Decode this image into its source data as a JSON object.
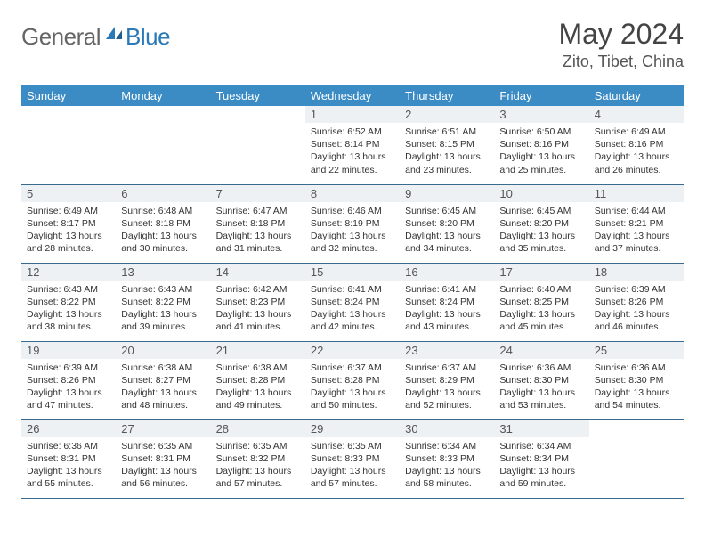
{
  "brand": {
    "part1": "General",
    "part2": "Blue"
  },
  "title": "May 2024",
  "location": "Zito, Tibet, China",
  "colors": {
    "header_bg": "#3b8bc4",
    "header_text": "#ffffff",
    "daynum_bg": "#eef1f3",
    "border": "#3b6a8f",
    "brand_gray": "#666666",
    "brand_blue": "#2a7ab8"
  },
  "weekdays": [
    "Sunday",
    "Monday",
    "Tuesday",
    "Wednesday",
    "Thursday",
    "Friday",
    "Saturday"
  ],
  "weeks": [
    [
      null,
      null,
      null,
      {
        "n": "1",
        "sr": "6:52 AM",
        "ss": "8:14 PM",
        "dl": "13 hours and 22 minutes."
      },
      {
        "n": "2",
        "sr": "6:51 AM",
        "ss": "8:15 PM",
        "dl": "13 hours and 23 minutes."
      },
      {
        "n": "3",
        "sr": "6:50 AM",
        "ss": "8:16 PM",
        "dl": "13 hours and 25 minutes."
      },
      {
        "n": "4",
        "sr": "6:49 AM",
        "ss": "8:16 PM",
        "dl": "13 hours and 26 minutes."
      }
    ],
    [
      {
        "n": "5",
        "sr": "6:49 AM",
        "ss": "8:17 PM",
        "dl": "13 hours and 28 minutes."
      },
      {
        "n": "6",
        "sr": "6:48 AM",
        "ss": "8:18 PM",
        "dl": "13 hours and 30 minutes."
      },
      {
        "n": "7",
        "sr": "6:47 AM",
        "ss": "8:18 PM",
        "dl": "13 hours and 31 minutes."
      },
      {
        "n": "8",
        "sr": "6:46 AM",
        "ss": "8:19 PM",
        "dl": "13 hours and 32 minutes."
      },
      {
        "n": "9",
        "sr": "6:45 AM",
        "ss": "8:20 PM",
        "dl": "13 hours and 34 minutes."
      },
      {
        "n": "10",
        "sr": "6:45 AM",
        "ss": "8:20 PM",
        "dl": "13 hours and 35 minutes."
      },
      {
        "n": "11",
        "sr": "6:44 AM",
        "ss": "8:21 PM",
        "dl": "13 hours and 37 minutes."
      }
    ],
    [
      {
        "n": "12",
        "sr": "6:43 AM",
        "ss": "8:22 PM",
        "dl": "13 hours and 38 minutes."
      },
      {
        "n": "13",
        "sr": "6:43 AM",
        "ss": "8:22 PM",
        "dl": "13 hours and 39 minutes."
      },
      {
        "n": "14",
        "sr": "6:42 AM",
        "ss": "8:23 PM",
        "dl": "13 hours and 41 minutes."
      },
      {
        "n": "15",
        "sr": "6:41 AM",
        "ss": "8:24 PM",
        "dl": "13 hours and 42 minutes."
      },
      {
        "n": "16",
        "sr": "6:41 AM",
        "ss": "8:24 PM",
        "dl": "13 hours and 43 minutes."
      },
      {
        "n": "17",
        "sr": "6:40 AM",
        "ss": "8:25 PM",
        "dl": "13 hours and 45 minutes."
      },
      {
        "n": "18",
        "sr": "6:39 AM",
        "ss": "8:26 PM",
        "dl": "13 hours and 46 minutes."
      }
    ],
    [
      {
        "n": "19",
        "sr": "6:39 AM",
        "ss": "8:26 PM",
        "dl": "13 hours and 47 minutes."
      },
      {
        "n": "20",
        "sr": "6:38 AM",
        "ss": "8:27 PM",
        "dl": "13 hours and 48 minutes."
      },
      {
        "n": "21",
        "sr": "6:38 AM",
        "ss": "8:28 PM",
        "dl": "13 hours and 49 minutes."
      },
      {
        "n": "22",
        "sr": "6:37 AM",
        "ss": "8:28 PM",
        "dl": "13 hours and 50 minutes."
      },
      {
        "n": "23",
        "sr": "6:37 AM",
        "ss": "8:29 PM",
        "dl": "13 hours and 52 minutes."
      },
      {
        "n": "24",
        "sr": "6:36 AM",
        "ss": "8:30 PM",
        "dl": "13 hours and 53 minutes."
      },
      {
        "n": "25",
        "sr": "6:36 AM",
        "ss": "8:30 PM",
        "dl": "13 hours and 54 minutes."
      }
    ],
    [
      {
        "n": "26",
        "sr": "6:36 AM",
        "ss": "8:31 PM",
        "dl": "13 hours and 55 minutes."
      },
      {
        "n": "27",
        "sr": "6:35 AM",
        "ss": "8:31 PM",
        "dl": "13 hours and 56 minutes."
      },
      {
        "n": "28",
        "sr": "6:35 AM",
        "ss": "8:32 PM",
        "dl": "13 hours and 57 minutes."
      },
      {
        "n": "29",
        "sr": "6:35 AM",
        "ss": "8:33 PM",
        "dl": "13 hours and 57 minutes."
      },
      {
        "n": "30",
        "sr": "6:34 AM",
        "ss": "8:33 PM",
        "dl": "13 hours and 58 minutes."
      },
      {
        "n": "31",
        "sr": "6:34 AM",
        "ss": "8:34 PM",
        "dl": "13 hours and 59 minutes."
      },
      null
    ]
  ],
  "labels": {
    "sunrise": "Sunrise:",
    "sunset": "Sunset:",
    "daylight": "Daylight:"
  }
}
